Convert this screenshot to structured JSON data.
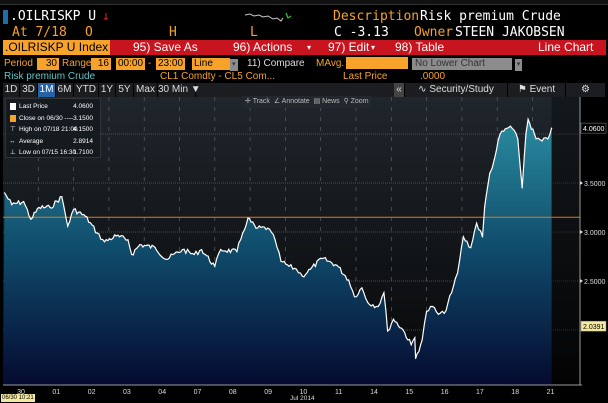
{
  "header": {
    "ticker": ".OILRISKP U",
    "trend_icon": "down-arrow-icon",
    "description_label": "Description",
    "description": "Risk premium Crude",
    "at_label": "At 7/18",
    "open_label": "O",
    "high_label": "H",
    "low_label": "L",
    "change": "C -3.13",
    "owner_label": "Owner",
    "owner": "STEEN JAKOBSEN"
  },
  "menubar": {
    "security": ".OILRISKP U Index",
    "save_as": "95) Save As",
    "actions": "96) Actions",
    "edit": "97) Edit",
    "table": "98) Table",
    "view": "Line Chart"
  },
  "controls": {
    "period_label": "Period",
    "period": "30",
    "range_label": "Range",
    "range": "16",
    "time_from": "00:00",
    "time_sep": "-",
    "time_to": "23:00",
    "chart_type": "Line",
    "compare": "11)  Compare",
    "mavg_label": "MAvg.",
    "lower_chart": "No Lower Chart"
  },
  "info": {
    "series_name": "Risk premium Crude",
    "formula": "CL1 Comdty - CL5 Com...",
    "last_price_label": "Last Price",
    "last_price": ".0000"
  },
  "tabs": [
    "1D",
    "3D",
    "1M",
    "6M",
    "YTD",
    "1Y",
    "5Y",
    "Max",
    "30 Min ▼"
  ],
  "selected_tab": "1M",
  "right_tools": {
    "collapse": "«",
    "security_study": "Security/Study",
    "event": "Event",
    "settings": "⚙"
  },
  "chart_tools": [
    "Track",
    "Annotate",
    "News",
    "Zoom"
  ],
  "colors": {
    "accent_orange": "#f7a22a",
    "menu_red": "#c8141e",
    "selected_tab": "#2463a5",
    "fill_top": "#2a8ca0",
    "fill_bottom": "#050a30",
    "line": "#ffffff",
    "close_line": "#e07a10"
  },
  "chart_data": {
    "type": "area",
    "legend": [
      {
        "label": "Last Price",
        "value": "4.0600"
      },
      {
        "label": "Close on 06/30 ----",
        "value": "3.1500"
      },
      {
        "label": "High on 07/18 21:00",
        "value": "4.1500"
      },
      {
        "label": "Average",
        "value": "2.8914"
      },
      {
        "label": "Low on 07/15 16:30",
        "value": "1.7100"
      }
    ],
    "x_tick_labels": [
      "30",
      "01",
      "02",
      "03",
      "04",
      "07",
      "08",
      "09",
      "10",
      "11",
      "14",
      "15",
      "16",
      "17",
      "18",
      "21"
    ],
    "x_dates": [
      "06/30",
      "07/01",
      "07/02",
      "07/03",
      "07/04",
      "07/07",
      "07/08",
      "07/09",
      "07/10",
      "07/11",
      "07/14",
      "07/15",
      "07/16",
      "07/17",
      "07/18",
      "07/21"
    ],
    "xlabel": "Jul 2014",
    "cursor_time": "06/30 10:21",
    "y_ticks": [
      "3.5000",
      "3.0000",
      "2.5000"
    ],
    "ylim": [
      1.5,
      4.35
    ],
    "last_price_tag": "4.0600",
    "crosshair_tag": "2.0391",
    "close_reference": 3.15,
    "grid": true,
    "legend_position": "top-left",
    "points": [
      [
        "06/30 01:00",
        3.4
      ],
      [
        "06/30 06:00",
        3.28
      ],
      [
        "06/30 14:00",
        3.31
      ],
      [
        "06/30 19:00",
        3.13
      ],
      [
        "07/01 00:30",
        3.25
      ],
      [
        "07/01 08:00",
        3.25
      ],
      [
        "07/01 16:00",
        3.36
      ],
      [
        "07/01 20:00",
        3.06
      ],
      [
        "07/02 00:00",
        3.23
      ],
      [
        "07/02 08:00",
        3.16
      ],
      [
        "07/02 16:00",
        2.99
      ],
      [
        "07/02 21:00",
        2.9
      ],
      [
        "07/03 05:00",
        2.96
      ],
      [
        "07/03 13:00",
        2.92
      ],
      [
        "07/03 15:30",
        2.77
      ],
      [
        "07/03 21:00",
        2.87
      ],
      [
        "07/04 07:30",
        2.84
      ],
      [
        "07/04 15:00",
        2.72
      ],
      [
        "07/07 02:00",
        2.82
      ],
      [
        "07/07 10:00",
        2.77
      ],
      [
        "07/07 15:00",
        2.82
      ],
      [
        "07/08 00:00",
        2.65
      ],
      [
        "07/08 04:00",
        2.82
      ],
      [
        "07/08 15:00",
        2.8
      ],
      [
        "07/08 19:00",
        2.99
      ],
      [
        "07/08 22:30",
        3.14
      ],
      [
        "07/09 04:00",
        3.04
      ],
      [
        "07/09 12:00",
        3.04
      ],
      [
        "07/09 17:00",
        2.92
      ],
      [
        "07/09 21:00",
        2.7
      ],
      [
        "07/10 02:30",
        2.65
      ],
      [
        "07/10 07:30",
        2.62
      ],
      [
        "07/10 11:30",
        2.55
      ],
      [
        "07/10 17:00",
        2.62
      ],
      [
        "07/11 01:00",
        2.73
      ],
      [
        "07/11 11:00",
        2.66
      ],
      [
        "07/11 19:00",
        2.51
      ],
      [
        "07/11 23:00",
        2.34
      ],
      [
        "07/14 04:00",
        2.43
      ],
      [
        "07/14 08:00",
        2.28
      ],
      [
        "07/14 15:00",
        2.24
      ],
      [
        "07/14 19:00",
        2.38
      ],
      [
        "07/14 21:30",
        1.99
      ],
      [
        "07/15 01:30",
        2.11
      ],
      [
        "07/15 08:00",
        2.0
      ],
      [
        "07/15 13:30",
        1.85
      ],
      [
        "07/15 16:00",
        1.92
      ],
      [
        "07/15 16:30",
        1.71
      ],
      [
        "07/15 21:00",
        1.9
      ],
      [
        "07/16 00:00",
        2.19
      ],
      [
        "07/16 04:00",
        2.24
      ],
      [
        "07/16 08:00",
        2.16
      ],
      [
        "07/16 12:00",
        2.17
      ],
      [
        "07/16 17:00",
        2.38
      ],
      [
        "07/16 21:00",
        2.58
      ],
      [
        "07/17 01:00",
        2.95
      ],
      [
        "07/17 06:00",
        2.84
      ],
      [
        "07/17 10:00",
        3.09
      ],
      [
        "07/17 14:00",
        2.95
      ],
      [
        "07/17 15:30",
        3.26
      ],
      [
        "07/17 19:00",
        3.6
      ],
      [
        "07/17 22:00",
        3.74
      ],
      [
        "07/18 02:00",
        4.0
      ],
      [
        "07/18 09:00",
        4.08
      ],
      [
        "07/18 14:00",
        3.95
      ],
      [
        "07/18 17:00",
        3.45
      ],
      [
        "07/18 19:30",
        4.0
      ],
      [
        "07/18 21:00",
        4.15
      ],
      [
        "07/21 02:30",
        3.95
      ],
      [
        "07/21 06:30",
        3.93
      ],
      [
        "07/21 10:30",
        3.95
      ],
      [
        "07/21 13:00",
        4.06
      ]
    ]
  }
}
